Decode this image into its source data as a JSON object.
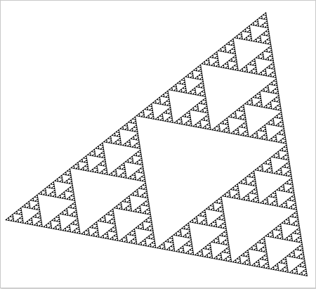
{
  "image": {
    "subject": "sierpinski-triangle-fractal",
    "fill_color": "#000000",
    "hole_color": "#ffffff",
    "background_color": "#ffffff",
    "border_color": "#c8c8c8",
    "recursion_depth": 7
  }
}
